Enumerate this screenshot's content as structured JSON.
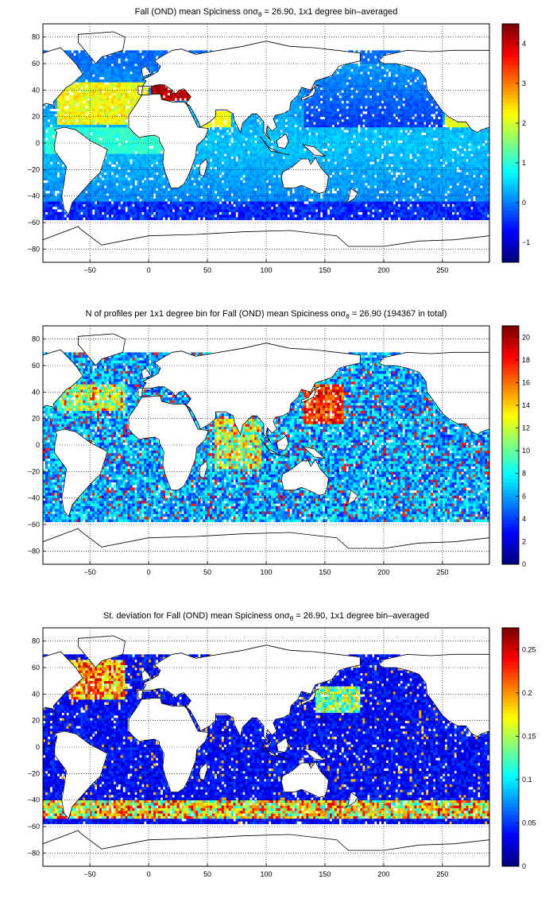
{
  "panels": [
    {
      "title_pre": "Fall (OND) mean Spiciness on",
      "title_sym": "σ",
      "title_sub": "θ",
      "title_post": " = 26.90, 1x1 degree bin–averaged",
      "colorbar": {
        "ticks": [
          "4",
          "3",
          "2",
          "1",
          "0",
          "−1"
        ],
        "tick_values": [
          4,
          3,
          2,
          1,
          0,
          -1
        ],
        "range": [
          -1.5,
          4.5
        ]
      }
    },
    {
      "title_pre": "N of profiles per 1x1 degree bin for Fall (OND) mean Spiciness on",
      "title_sym": "σ",
      "title_sub": "θ",
      "title_post": " = 26.90 (194367 in total)",
      "colorbar": {
        "ticks": [
          "20",
          "18",
          "16",
          "14",
          "12",
          "10",
          "8",
          "6",
          "4",
          "2",
          "0"
        ],
        "tick_values": [
          20,
          18,
          16,
          14,
          12,
          10,
          8,
          6,
          4,
          2,
          0
        ],
        "range": [
          0,
          21
        ]
      }
    },
    {
      "title_pre": "St. deviation for Fall (OND) mean Spiciness on",
      "title_sym": "σ",
      "title_sub": "θ",
      "title_post": " = 26.90, 1x1 degree bin–averaged",
      "colorbar": {
        "ticks": [
          "0.25",
          "0.2",
          "0.15",
          "0.1",
          "0.05",
          "0"
        ],
        "tick_values": [
          0.25,
          0.2,
          0.15,
          0.1,
          0.05,
          0
        ],
        "range": [
          0,
          0.275
        ]
      }
    }
  ],
  "axes": {
    "x_ticks": [
      "−50",
      "0",
      "50",
      "100",
      "150",
      "200",
      "250"
    ],
    "x_values": [
      -50,
      0,
      50,
      100,
      150,
      200,
      250
    ],
    "y_ticks": [
      "80",
      "60",
      "40",
      "20",
      "0",
      "−20",
      "−40",
      "−60",
      "−80"
    ],
    "y_values": [
      80,
      60,
      40,
      20,
      0,
      -20,
      -40,
      -60,
      -80
    ],
    "xlim": [
      -90,
      290
    ],
    "ylim": [
      -90,
      90
    ]
  },
  "colormap": "jet"
}
